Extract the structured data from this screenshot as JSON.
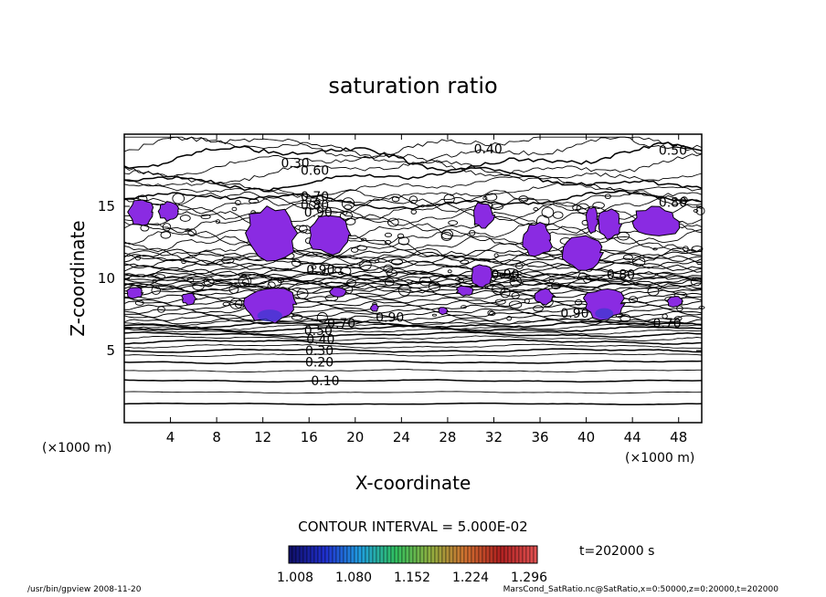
{
  "chart_data": {
    "type": "contour",
    "title": "saturation ratio",
    "xlabel": "X-coordinate",
    "ylabel": "Z-coordinate",
    "x_unit_left": "(×1000 m)",
    "x_unit_right": "(×1000 m)",
    "xlim": [
      0,
      50
    ],
    "ylim": [
      0,
      20
    ],
    "x_ticks": [
      4,
      8,
      12,
      16,
      20,
      24,
      28,
      32,
      36,
      40,
      44,
      48
    ],
    "y_ticks": [
      5,
      10,
      15
    ],
    "contour_interval_label": "CONTOUR INTERVAL = 5.000E-02",
    "contour_interval": 0.05,
    "time_label": "t=202000 s",
    "contour_labels": [
      {
        "text": "0.10",
        "x": 17.4,
        "z": 2.9
      },
      {
        "text": "0.20",
        "x": 16.9,
        "z": 4.2
      },
      {
        "text": "0.30",
        "x": 16.9,
        "z": 5.0
      },
      {
        "text": "0.40",
        "x": 17.0,
        "z": 5.8
      },
      {
        "text": "0.50",
        "x": 16.8,
        "z": 6.4
      },
      {
        "text": "0.70",
        "x": 18.8,
        "z": 6.9
      },
      {
        "text": "0.90",
        "x": 23.0,
        "z": 7.3
      },
      {
        "text": "0.90",
        "x": 39.0,
        "z": 7.6
      },
      {
        "text": "0.70",
        "x": 47.0,
        "z": 6.9
      },
      {
        "text": "0.90",
        "x": 17.0,
        "z": 10.6
      },
      {
        "text": "0.90",
        "x": 33.0,
        "z": 10.3
      },
      {
        "text": "0.80",
        "x": 43.0,
        "z": 10.3
      },
      {
        "text": "0.70",
        "x": 16.5,
        "z": 15.7
      },
      {
        "text": "0.80",
        "x": 16.5,
        "z": 15.1
      },
      {
        "text": "0.90",
        "x": 16.8,
        "z": 14.6
      },
      {
        "text": "0.60",
        "x": 16.5,
        "z": 17.5
      },
      {
        "text": "0.30",
        "x": 14.8,
        "z": 18.0
      },
      {
        "text": "0.40",
        "x": 31.5,
        "z": 19.0
      },
      {
        "text": "0.50",
        "x": 47.5,
        "z": 18.9
      },
      {
        "text": "0.80",
        "x": 47.5,
        "z": 15.3
      }
    ],
    "supersaturated_regions": [
      {
        "x": [
          0.3,
          2.5
        ],
        "z": [
          13.7,
          15.5
        ]
      },
      {
        "x": [
          3.0,
          4.7
        ],
        "z": [
          14.0,
          15.3
        ]
      },
      {
        "x": [
          10.5,
          15.0
        ],
        "z": [
          11.3,
          15.0
        ]
      },
      {
        "x": [
          16.0,
          19.5
        ],
        "z": [
          11.6,
          14.4
        ]
      },
      {
        "x": [
          30.2,
          32.0
        ],
        "z": [
          13.5,
          15.3
        ]
      },
      {
        "x": [
          34.5,
          37.0
        ],
        "z": [
          11.5,
          13.8
        ]
      },
      {
        "x": [
          37.8,
          41.5
        ],
        "z": [
          10.6,
          13.0
        ]
      },
      {
        "x": [
          40.0,
          41.0
        ],
        "z": [
          13.2,
          15.0
        ]
      },
      {
        "x": [
          41.0,
          43.0
        ],
        "z": [
          12.8,
          14.8
        ]
      },
      {
        "x": [
          44.0,
          48.0
        ],
        "z": [
          12.8,
          15.0
        ]
      },
      {
        "x": [
          30.0,
          31.8
        ],
        "z": [
          9.4,
          11.0
        ]
      },
      {
        "x": [
          10.2,
          15.0
        ],
        "z": [
          7.0,
          9.4
        ]
      },
      {
        "x": [
          39.8,
          43.3
        ],
        "z": [
          7.2,
          9.3
        ]
      },
      {
        "x": [
          35.5,
          37.2
        ],
        "z": [
          8.2,
          9.3
        ]
      },
      {
        "x": [
          28.8,
          30.2
        ],
        "z": [
          8.8,
          9.5
        ]
      },
      {
        "x": [
          17.8,
          19.2
        ],
        "z": [
          8.7,
          9.4
        ]
      },
      {
        "x": [
          0.2,
          1.6
        ],
        "z": [
          8.6,
          9.4
        ]
      },
      {
        "x": [
          5.0,
          6.2
        ],
        "z": [
          8.2,
          9.0
        ]
      },
      {
        "x": [
          21.3,
          22.0
        ],
        "z": [
          7.7,
          8.2
        ]
      },
      {
        "x": [
          27.2,
          28.0
        ],
        "z": [
          7.5,
          8.0
        ]
      },
      {
        "x": [
          47.0,
          48.3
        ],
        "z": [
          8.0,
          8.8
        ]
      }
    ],
    "colorbar": {
      "labels": [
        "1.008",
        "1.080",
        "1.152",
        "1.224",
        "1.296"
      ],
      "colors": [
        "#10106a",
        "#2030d0",
        "#20a0e0",
        "#30c060",
        "#90b040",
        "#d07030",
        "#b02020",
        "#e05050"
      ]
    },
    "fill_color": "#8a2be2"
  },
  "footer": {
    "left": "/usr/bin/gpview   2008-11-20",
    "right": "MarsCond_SatRatio.nc@SatRatio,x=0:50000,z=0:20000,t=202000"
  }
}
